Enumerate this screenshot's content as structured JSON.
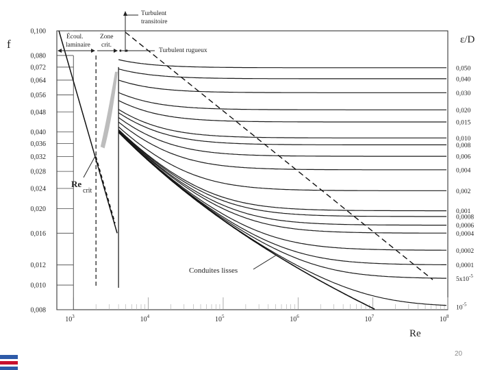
{
  "page_number": "20",
  "chart_data": {
    "type": "line",
    "title": "",
    "xlabel": "Re",
    "ylabel": "f",
    "right_axis_label": "ε/D",
    "x_scale": "log",
    "xlim": [
      600,
      100000000
    ],
    "y_scale": "log",
    "ylim": [
      0.008,
      0.1
    ],
    "x_ticks": [
      {
        "value": 1000,
        "base": "10",
        "exp": "3"
      },
      {
        "value": 10000,
        "base": "10",
        "exp": "4"
      },
      {
        "value": 100000,
        "base": "10",
        "exp": "5"
      },
      {
        "value": 1000000,
        "base": "10",
        "exp": "6"
      },
      {
        "value": 10000000,
        "base": "10",
        "exp": "7"
      },
      {
        "value": 100000000,
        "base": "10",
        "exp": "8"
      }
    ],
    "y_ticks": [
      {
        "value": 0.1,
        "label": "0,100"
      },
      {
        "value": 0.08,
        "label": "0,080"
      },
      {
        "value": 0.072,
        "label": "0,072"
      },
      {
        "value": 0.064,
        "label": "0,064"
      },
      {
        "value": 0.056,
        "label": "0,056"
      },
      {
        "value": 0.048,
        "label": "0,048"
      },
      {
        "value": 0.04,
        "label": "0,040"
      },
      {
        "value": 0.036,
        "label": "0,036"
      },
      {
        "value": 0.032,
        "label": "0,032"
      },
      {
        "value": 0.028,
        "label": "0,028"
      },
      {
        "value": 0.024,
        "label": "0,024"
      },
      {
        "value": 0.02,
        "label": "0,020"
      },
      {
        "value": 0.016,
        "label": "0,016"
      },
      {
        "value": 0.012,
        "label": "0,012"
      },
      {
        "value": 0.01,
        "label": "0,010"
      },
      {
        "value": 0.008,
        "label": "0,008"
      }
    ],
    "annotations": {
      "laminar_top": "Écoul.",
      "laminar_bottom": "laminaire",
      "critical_top": "Zone",
      "critical_bottom": "crit.",
      "transition_top": "Turbulent",
      "transition_bottom": "transitoire",
      "rough": "Turbulent rugueux",
      "re_crit_main": "Re",
      "re_crit_sub": "crit",
      "smooth": "Conduites lisses"
    },
    "laminar_line": {
      "name": "",
      "formula": "f = 64/Re",
      "x": [
        640,
        4000
      ],
      "y": [
        0.1,
        0.016
      ]
    },
    "rough_boundary": {
      "name": "",
      "x": [
        4000,
        100000000
      ],
      "y": [
        0.1,
        0.0105
      ]
    },
    "critical_Re": [
      2000,
      4000
    ],
    "series": [
      {
        "roughness": "0,050",
        "f_rough": 0.0716,
        "start_Re": 4000
      },
      {
        "roughness": "0,040",
        "f_rough": 0.0648,
        "start_Re": 4000
      },
      {
        "roughness": "0,030",
        "f_rough": 0.0571,
        "start_Re": 4000
      },
      {
        "roughness": "0,020",
        "f_rough": 0.0489,
        "start_Re": 4000
      },
      {
        "roughness": "0,015",
        "f_rough": 0.0438,
        "start_Re": 4000
      },
      {
        "roughness": "0,010",
        "f_rough": 0.0379,
        "start_Re": 4000
      },
      {
        "roughness": "0,008",
        "f_rough": 0.0356,
        "start_Re": 4000
      },
      {
        "roughness": "0,006",
        "f_rough": 0.0321,
        "start_Re": 4000
      },
      {
        "roughness": "0,004",
        "f_rough": 0.0284,
        "start_Re": 4000
      },
      {
        "roughness": "0,002",
        "f_rough": 0.0235,
        "start_Re": 4000
      },
      {
        "roughness": "0,001",
        "f_rough": 0.0196,
        "start_Re": 4000
      },
      {
        "roughness": "0,0008",
        "f_rough": 0.0186,
        "start_Re": 4000
      },
      {
        "roughness": "0,0006",
        "f_rough": 0.0172,
        "start_Re": 4000
      },
      {
        "roughness": "0,0004",
        "f_rough": 0.016,
        "start_Re": 4000
      },
      {
        "roughness": "0,0002",
        "f_rough": 0.0137,
        "start_Re": 4000
      },
      {
        "roughness": "0,0001",
        "f_rough": 0.012,
        "start_Re": 4000
      },
      {
        "roughness": "5x10",
        "roughness_exp": "-5",
        "f_rough": 0.0106,
        "start_Re": 4000
      },
      {
        "roughness": "10",
        "roughness_exp": "-5",
        "f_rough": 0.0082,
        "start_Re": 4000
      }
    ],
    "smooth_curve": {
      "Re": [
        4000,
        10000,
        100000,
        1000000,
        10000000,
        30000000
      ],
      "f": [
        0.04,
        0.031,
        0.018,
        0.0117,
        0.0081,
        0.007
      ]
    },
    "grid": true,
    "legend": "none"
  }
}
